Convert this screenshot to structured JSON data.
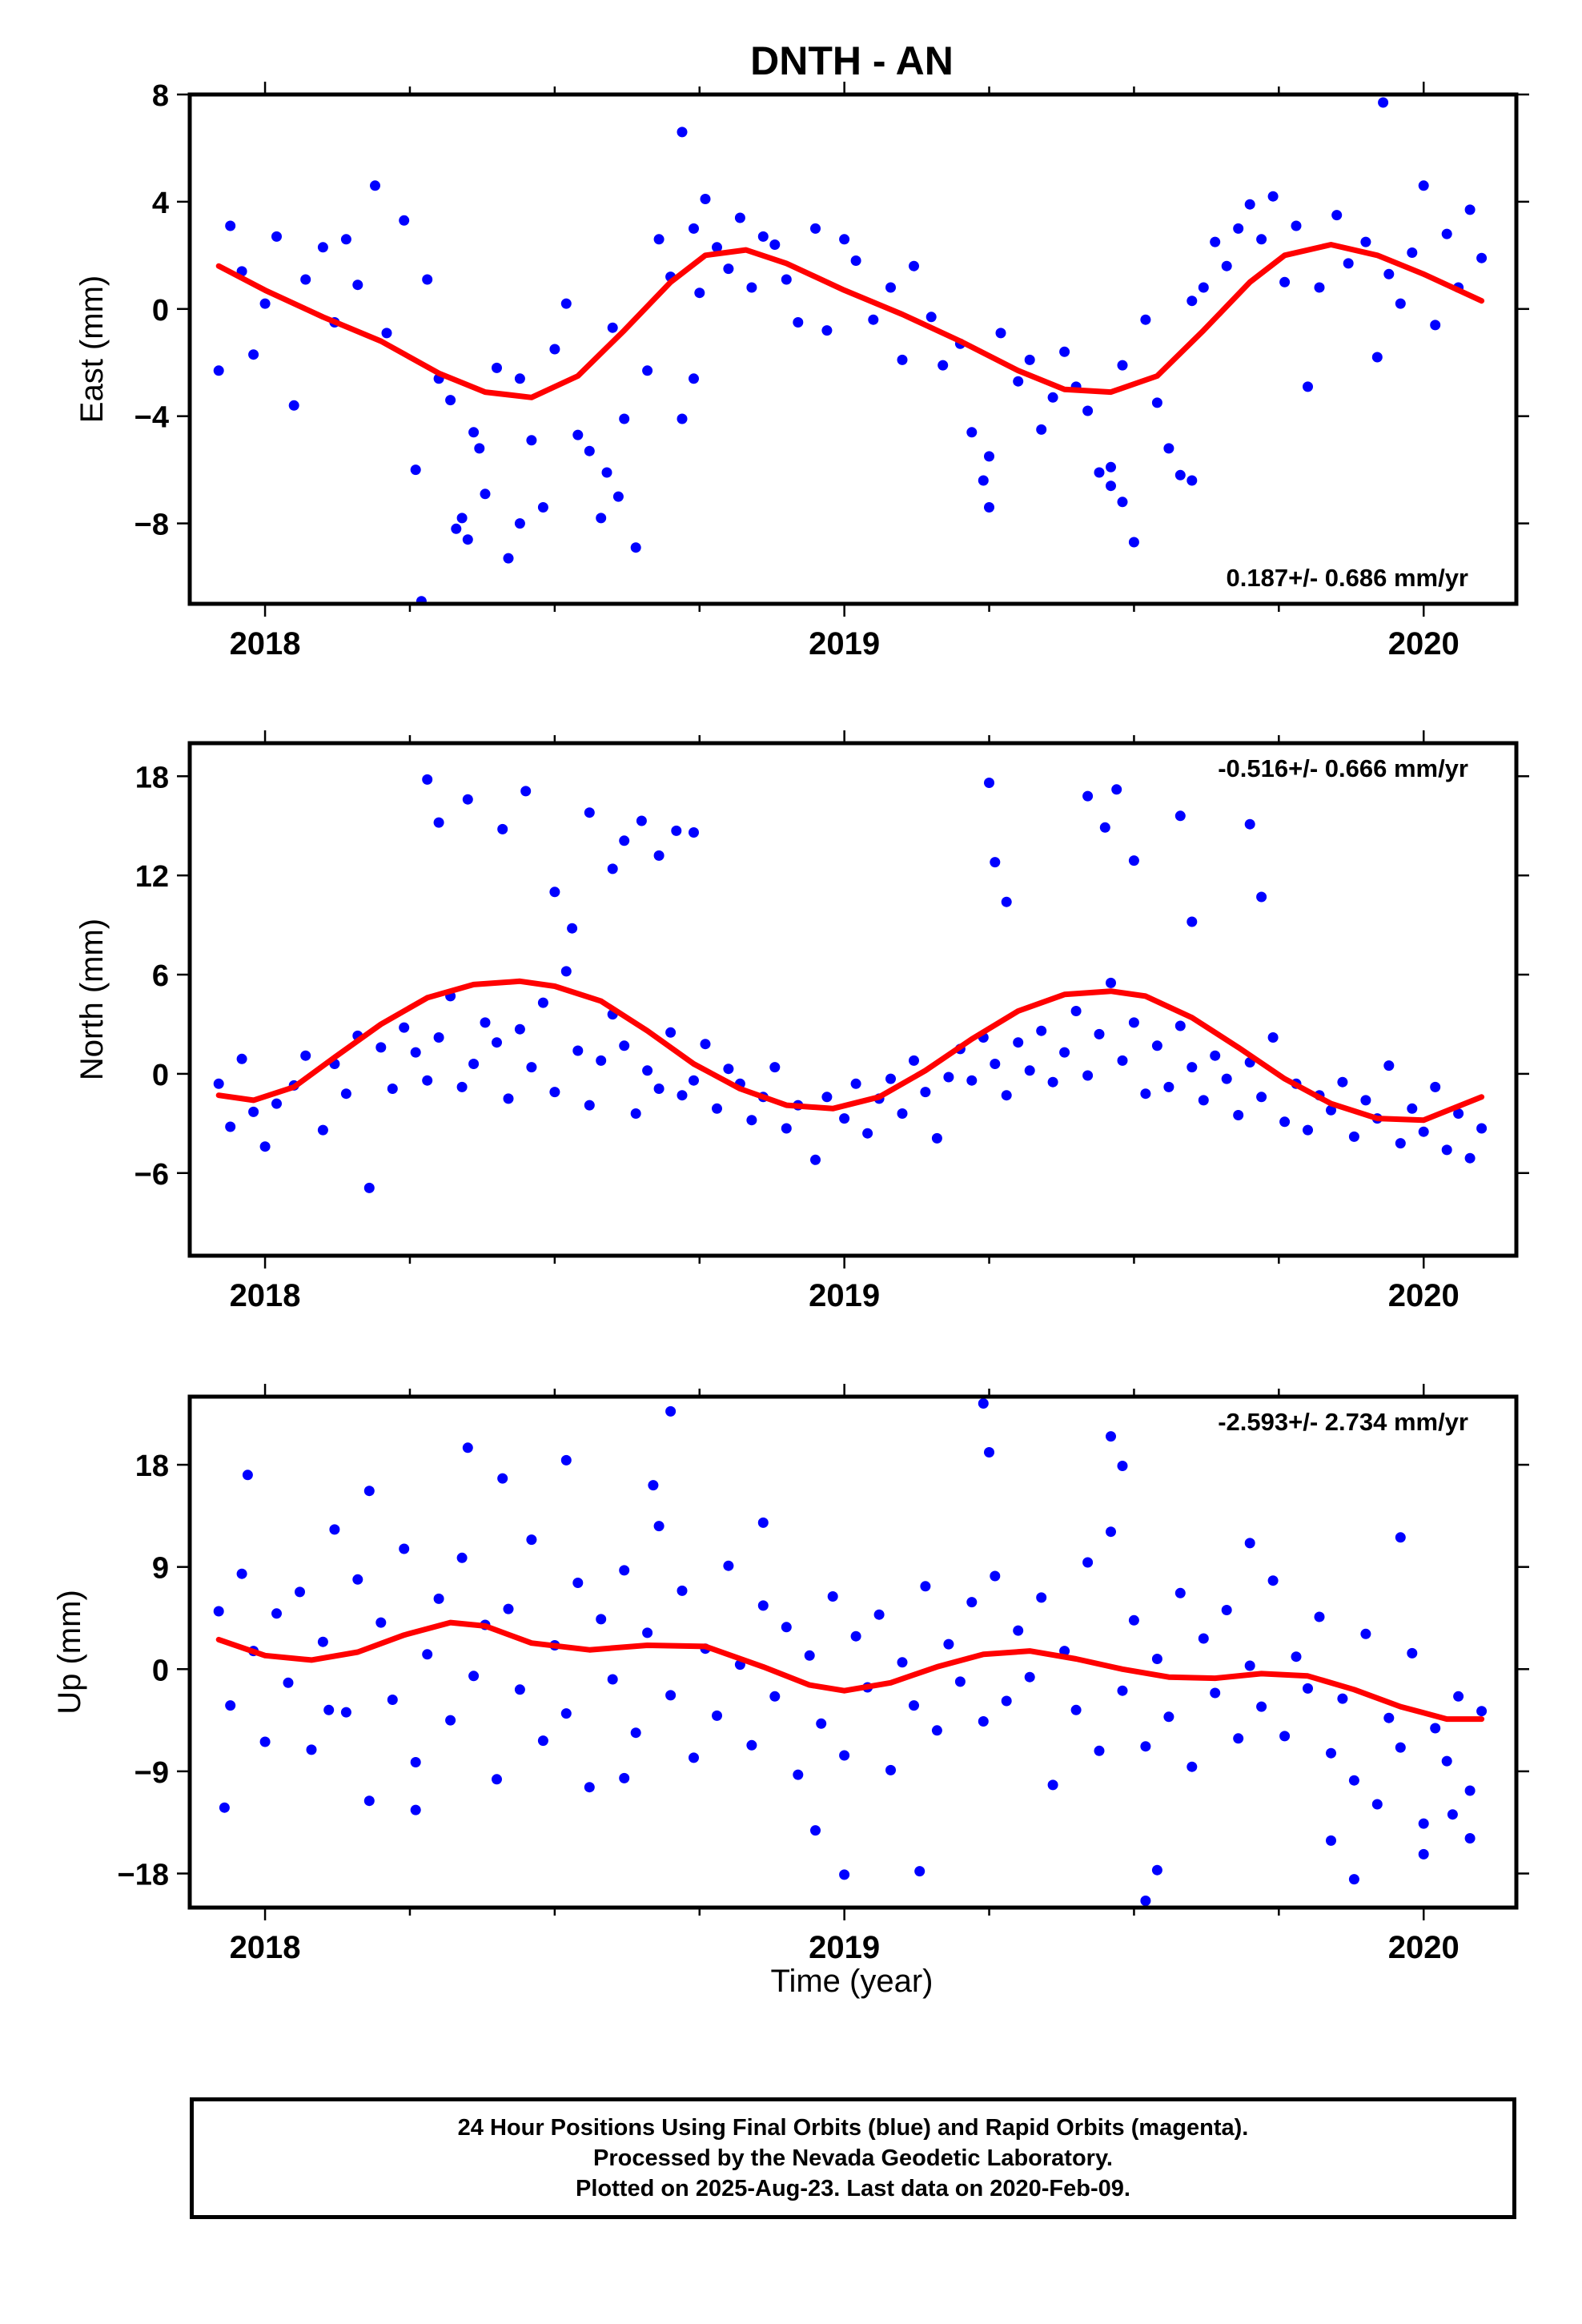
{
  "figure": {
    "title": "DNTH - AN",
    "xlabel": "Time (year)"
  },
  "colors": {
    "data": "#0000ff",
    "fit": "#ff0000",
    "axis": "#000000"
  },
  "caption": {
    "lines": [
      "24 Hour Positions Using Final Orbits (blue) and Rapid Orbits (magenta).",
      "Processed by the Nevada Geodetic Laboratory.",
      "Plotted on 2025-Aug-23. Last data on 2020-Feb-09."
    ]
  },
  "chart_data": [
    {
      "type": "scatter",
      "ylabel": "East (mm)",
      "rate_label": "0.187+/- 0.686 mm/yr",
      "rate_position": "bottom-right",
      "xlim": [
        2017.87,
        2020.16
      ],
      "ylim": [
        -11,
        8
      ],
      "yticks": [
        8,
        4,
        0,
        -4,
        -8
      ],
      "xticks": [
        2018,
        2019,
        2020
      ],
      "fit": {
        "x": [
          2017.92,
          2018.0,
          2018.1,
          2018.2,
          2018.3,
          2018.38,
          2018.46,
          2018.54,
          2018.62,
          2018.7,
          2018.76,
          2018.83,
          2018.9,
          2019.0,
          2019.1,
          2019.2,
          2019.3,
          2019.38,
          2019.46,
          2019.54,
          2019.62,
          2019.7,
          2019.76,
          2019.84,
          2019.92,
          2020.0,
          2020.1
        ],
        "y": [
          1.6,
          0.7,
          -0.3,
          -1.2,
          -2.4,
          -3.1,
          -3.3,
          -2.5,
          -0.8,
          1.0,
          2.0,
          2.2,
          1.7,
          0.7,
          -0.2,
          -1.2,
          -2.3,
          -3.0,
          -3.1,
          -2.5,
          -0.8,
          1.0,
          2.0,
          2.4,
          2.0,
          1.3,
          0.3
        ]
      },
      "points": {
        "x": [
          2017.92,
          2017.94,
          2017.96,
          2017.98,
          2018.0,
          2018.02,
          2018.05,
          2018.07,
          2018.1,
          2018.12,
          2018.14,
          2018.16,
          2018.19,
          2018.21,
          2018.24,
          2018.26,
          2018.28,
          2018.3,
          2018.32,
          2018.34,
          2018.35,
          2018.37,
          2018.38,
          2018.4,
          2018.42,
          2018.44,
          2018.46,
          2018.48,
          2018.5,
          2018.52,
          2018.54,
          2018.56,
          2018.58,
          2018.6,
          2018.62,
          2018.64,
          2018.66,
          2018.68,
          2018.7,
          2018.72,
          2018.74,
          2018.75,
          2018.76,
          2018.78,
          2018.8,
          2018.82,
          2018.84,
          2018.86,
          2018.88,
          2018.9,
          2018.92,
          2018.95,
          2018.97,
          2019.0,
          2019.02,
          2019.05,
          2019.08,
          2019.1,
          2019.12,
          2019.15,
          2019.17,
          2019.2,
          2019.22,
          2019.24,
          2019.25,
          2019.27,
          2019.3,
          2019.32,
          2019.34,
          2019.36,
          2019.38,
          2019.4,
          2019.42,
          2019.44,
          2019.46,
          2019.48,
          2019.5,
          2019.52,
          2019.54,
          2019.56,
          2019.58,
          2019.6,
          2019.62,
          2019.64,
          2019.66,
          2019.68,
          2019.7,
          2019.72,
          2019.74,
          2019.76,
          2019.78,
          2019.8,
          2019.82,
          2019.85,
          2019.87,
          2019.9,
          2019.92,
          2019.94,
          2019.96,
          2019.98,
          2020.0,
          2020.02,
          2020.04,
          2020.06,
          2020.08,
          2020.1,
          2018.27,
          2018.33,
          2018.36,
          2018.44,
          2018.59,
          2018.61,
          2018.72,
          2018.74,
          2019.25,
          2019.46,
          2019.48,
          2019.6,
          2019.93
        ],
        "y": [
          -2.3,
          3.1,
          1.4,
          -1.7,
          0.2,
          2.7,
          -3.6,
          1.1,
          2.3,
          -0.5,
          2.6,
          0.9,
          4.6,
          -0.9,
          3.3,
          -6.0,
          1.1,
          -2.6,
          -3.4,
          -7.8,
          -8.6,
          -5.2,
          -6.9,
          -2.2,
          -9.3,
          -2.6,
          -4.9,
          -7.4,
          -1.5,
          0.2,
          -4.7,
          -5.3,
          -7.8,
          -0.7,
          -4.1,
          -8.9,
          -2.3,
          2.6,
          1.2,
          6.6,
          3.0,
          0.6,
          4.1,
          2.3,
          1.5,
          3.4,
          0.8,
          2.7,
          2.4,
          1.1,
          -0.5,
          3.0,
          -0.8,
          2.6,
          1.8,
          -0.4,
          0.8,
          -1.9,
          1.6,
          -0.3,
          -2.1,
          -1.3,
          -4.6,
          -6.4,
          -5.5,
          -0.9,
          -2.7,
          -1.9,
          -4.5,
          -3.3,
          -1.6,
          -2.9,
          -3.8,
          -6.1,
          -6.6,
          -2.1,
          -8.7,
          -0.4,
          -3.5,
          -5.2,
          -6.2,
          0.3,
          0.8,
          2.5,
          1.6,
          3.0,
          3.9,
          2.6,
          4.2,
          1.0,
          3.1,
          -2.9,
          0.8,
          3.5,
          1.7,
          2.5,
          -1.8,
          1.3,
          0.2,
          2.1,
          4.6,
          -0.6,
          2.8,
          0.8,
          3.7,
          1.9,
          -10.9,
          -8.2,
          -4.6,
          -8.0,
          -6.1,
          -7.0,
          -4.1,
          -2.6,
          -7.4,
          -5.9,
          -7.2,
          -6.4,
          7.7
        ]
      }
    },
    {
      "type": "scatter",
      "ylabel": "North (mm)",
      "rate_label": "-0.516+/- 0.666 mm/yr",
      "rate_position": "top-right",
      "xlim": [
        2017.87,
        2020.16
      ],
      "ylim": [
        -11,
        20
      ],
      "yticks": [
        18,
        12,
        6,
        0,
        -6
      ],
      "xticks": [
        2018,
        2019,
        2020
      ],
      "fit": {
        "x": [
          2017.92,
          2017.98,
          2018.05,
          2018.12,
          2018.2,
          2018.28,
          2018.36,
          2018.44,
          2018.5,
          2018.58,
          2018.66,
          2018.74,
          2018.82,
          2018.9,
          2018.98,
          2019.06,
          2019.14,
          2019.22,
          2019.3,
          2019.38,
          2019.46,
          2019.52,
          2019.6,
          2019.68,
          2019.76,
          2019.84,
          2019.92,
          2020.0,
          2020.1
        ],
        "y": [
          -1.3,
          -1.6,
          -0.8,
          1.0,
          3.0,
          4.6,
          5.4,
          5.6,
          5.3,
          4.4,
          2.6,
          0.6,
          -0.9,
          -1.9,
          -2.1,
          -1.4,
          0.2,
          2.1,
          3.8,
          4.8,
          5.0,
          4.7,
          3.4,
          1.6,
          -0.3,
          -1.8,
          -2.7,
          -2.8,
          -1.4
        ]
      },
      "points": {
        "x": [
          2017.92,
          2017.94,
          2017.96,
          2017.98,
          2018.0,
          2018.02,
          2018.05,
          2018.07,
          2018.1,
          2018.12,
          2018.14,
          2018.16,
          2018.18,
          2018.2,
          2018.22,
          2018.24,
          2018.26,
          2018.28,
          2018.3,
          2018.32,
          2018.34,
          2018.36,
          2018.38,
          2018.4,
          2018.42,
          2018.44,
          2018.46,
          2018.48,
          2018.5,
          2018.52,
          2018.54,
          2018.56,
          2018.58,
          2018.6,
          2018.62,
          2018.64,
          2018.66,
          2018.68,
          2018.7,
          2018.72,
          2018.74,
          2018.76,
          2018.78,
          2018.8,
          2018.82,
          2018.84,
          2018.86,
          2018.88,
          2018.9,
          2018.92,
          2018.95,
          2018.97,
          2019.0,
          2019.02,
          2019.04,
          2019.06,
          2019.08,
          2019.1,
          2019.12,
          2019.14,
          2019.16,
          2019.18,
          2019.2,
          2019.22,
          2019.24,
          2019.26,
          2019.28,
          2019.3,
          2019.32,
          2019.34,
          2019.36,
          2019.38,
          2019.4,
          2019.42,
          2019.44,
          2019.46,
          2019.48,
          2019.5,
          2019.52,
          2019.54,
          2019.56,
          2019.58,
          2019.6,
          2019.62,
          2019.64,
          2019.66,
          2019.68,
          2019.7,
          2019.72,
          2019.74,
          2019.76,
          2019.78,
          2019.8,
          2019.82,
          2019.84,
          2019.86,
          2019.88,
          2019.9,
          2019.92,
          2019.94,
          2019.96,
          2019.98,
          2020.0,
          2020.02,
          2020.04,
          2020.06,
          2020.08,
          2020.1,
          2018.28,
          2018.3,
          2018.35,
          2018.41,
          2018.45,
          2018.5,
          2018.53,
          2018.56,
          2018.6,
          2018.62,
          2018.65,
          2018.68,
          2018.71,
          2018.74,
          2019.25,
          2019.26,
          2019.28,
          2019.42,
          2019.45,
          2019.47,
          2019.5,
          2019.58,
          2019.6,
          2019.7,
          2019.72
        ],
        "y": [
          -0.6,
          -3.2,
          0.9,
          -2.3,
          -4.4,
          -1.8,
          -0.7,
          1.1,
          -3.4,
          0.6,
          -1.2,
          2.3,
          -6.9,
          1.6,
          -0.9,
          2.8,
          1.3,
          -0.4,
          2.2,
          4.7,
          -0.8,
          0.6,
          3.1,
          1.9,
          -1.5,
          2.7,
          0.4,
          4.3,
          -1.1,
          6.2,
          1.4,
          -1.9,
          0.8,
          3.6,
          1.7,
          -2.4,
          0.2,
          -0.9,
          2.5,
          -1.3,
          -0.4,
          1.8,
          -2.1,
          0.3,
          -0.6,
          -2.8,
          -1.4,
          0.4,
          -3.3,
          -1.9,
          -5.2,
          -1.4,
          -2.7,
          -0.6,
          -3.6,
          -1.5,
          -0.3,
          -2.4,
          0.8,
          -1.1,
          -3.9,
          -0.2,
          1.5,
          -0.4,
          2.2,
          0.6,
          -1.3,
          1.9,
          0.2,
          2.6,
          -0.5,
          1.3,
          3.8,
          -0.1,
          2.4,
          5.5,
          0.8,
          3.1,
          -1.2,
          1.7,
          -0.8,
          2.9,
          0.4,
          -1.6,
          1.1,
          -0.3,
          -2.5,
          0.7,
          -1.4,
          2.2,
          -2.9,
          -0.6,
          -3.4,
          -1.3,
          -2.2,
          -0.5,
          -3.8,
          -1.6,
          -2.7,
          0.5,
          -4.2,
          -2.1,
          -3.5,
          -0.8,
          -4.6,
          -2.4,
          -5.1,
          -3.3,
          17.8,
          15.2,
          16.6,
          14.8,
          17.1,
          11.0,
          8.8,
          15.8,
          12.4,
          14.1,
          15.3,
          13.2,
          14.7,
          14.6,
          17.6,
          12.8,
          10.4,
          16.8,
          14.9,
          17.2,
          12.9,
          15.6,
          9.2,
          15.1,
          10.7
        ]
      }
    },
    {
      "type": "scatter",
      "ylabel": "Up (mm)",
      "rate_label": "-2.593+/- 2.734 mm/yr",
      "rate_position": "top-right",
      "xlim": [
        2017.87,
        2020.16
      ],
      "ylim": [
        -21,
        24
      ],
      "yticks": [
        18,
        9,
        0,
        -9,
        -18
      ],
      "xticks": [
        2018,
        2019,
        2020
      ],
      "fit": {
        "x": [
          2017.92,
          2018.0,
          2018.08,
          2018.16,
          2018.24,
          2018.32,
          2018.38,
          2018.46,
          2018.56,
          2018.66,
          2018.76,
          2018.86,
          2018.94,
          2019.0,
          2019.08,
          2019.16,
          2019.24,
          2019.32,
          2019.4,
          2019.48,
          2019.56,
          2019.64,
          2019.72,
          2019.8,
          2019.88,
          2019.96,
          2020.04,
          2020.1
        ],
        "y": [
          2.6,
          1.2,
          0.8,
          1.5,
          3.0,
          4.1,
          3.8,
          2.3,
          1.7,
          2.1,
          2.0,
          0.2,
          -1.4,
          -1.9,
          -1.2,
          0.2,
          1.3,
          1.6,
          0.9,
          0.0,
          -0.7,
          -0.8,
          -0.4,
          -0.6,
          -1.8,
          -3.3,
          -4.4,
          -4.4
        ]
      },
      "points": {
        "x": [
          2017.92,
          2017.94,
          2017.96,
          2017.98,
          2018.0,
          2018.02,
          2018.04,
          2018.06,
          2018.08,
          2018.1,
          2018.12,
          2018.14,
          2018.16,
          2018.18,
          2018.2,
          2018.22,
          2018.24,
          2018.26,
          2018.28,
          2018.3,
          2018.32,
          2018.34,
          2018.36,
          2018.38,
          2018.4,
          2018.42,
          2018.44,
          2018.46,
          2018.48,
          2018.5,
          2018.52,
          2018.54,
          2018.56,
          2018.58,
          2018.6,
          2018.62,
          2018.64,
          2018.66,
          2018.68,
          2018.7,
          2018.72,
          2018.74,
          2018.76,
          2018.78,
          2018.8,
          2018.82,
          2018.84,
          2018.86,
          2018.88,
          2018.9,
          2018.92,
          2018.94,
          2018.96,
          2018.98,
          2019.0,
          2019.02,
          2019.04,
          2019.06,
          2019.08,
          2019.1,
          2019.12,
          2019.14,
          2019.16,
          2019.18,
          2019.2,
          2019.22,
          2019.24,
          2019.26,
          2019.28,
          2019.3,
          2019.32,
          2019.34,
          2019.36,
          2019.38,
          2019.4,
          2019.42,
          2019.44,
          2019.46,
          2019.48,
          2019.5,
          2019.52,
          2019.54,
          2019.56,
          2019.58,
          2019.6,
          2019.62,
          2019.64,
          2019.66,
          2019.68,
          2019.7,
          2019.72,
          2019.74,
          2019.76,
          2019.78,
          2019.8,
          2019.82,
          2019.84,
          2019.86,
          2019.88,
          2019.9,
          2019.92,
          2019.94,
          2019.96,
          2019.98,
          2020.0,
          2020.02,
          2020.04,
          2020.06,
          2020.08,
          2020.1,
          2017.93,
          2017.97,
          2018.11,
          2018.18,
          2018.26,
          2018.35,
          2018.41,
          2018.52,
          2018.62,
          2018.67,
          2018.7,
          2018.86,
          2018.95,
          2019.0,
          2019.13,
          2019.24,
          2019.25,
          2019.46,
          2019.48,
          2019.52,
          2019.54,
          2019.7,
          2019.84,
          2019.88,
          2019.96,
          2020.0,
          2020.05,
          2020.08
        ],
        "y": [
          5.1,
          -3.2,
          8.4,
          1.6,
          -6.4,
          4.9,
          -1.2,
          6.8,
          -7.1,
          2.4,
          12.3,
          -3.8,
          7.9,
          -11.6,
          4.1,
          -2.7,
          10.6,
          -8.2,
          1.3,
          6.2,
          -4.5,
          9.8,
          -0.6,
          3.9,
          -9.7,
          5.3,
          -1.8,
          11.4,
          -6.3,
          2.1,
          -3.9,
          7.6,
          -10.4,
          4.4,
          -0.9,
          8.7,
          -5.6,
          3.2,
          12.6,
          -2.3,
          6.9,
          -7.8,
          1.8,
          -4.1,
          9.1,
          0.4,
          -6.7,
          5.6,
          -2.4,
          3.7,
          -9.3,
          1.2,
          -4.8,
          6.4,
          -7.6,
          2.9,
          -1.6,
          4.8,
          -8.9,
          0.6,
          -3.2,
          7.3,
          -5.4,
          2.2,
          -1.1,
          5.9,
          -4.6,
          8.2,
          -2.8,
          3.4,
          -0.7,
          6.3,
          -10.2,
          1.6,
          -3.6,
          9.4,
          -7.2,
          12.1,
          -1.9,
          4.3,
          -6.8,
          0.9,
          -4.2,
          6.7,
          -8.6,
          2.7,
          -2.1,
          5.2,
          -6.1,
          0.3,
          -3.3,
          7.8,
          -5.9,
          1.1,
          -1.7,
          4.6,
          -7.4,
          -2.6,
          -9.8,
          3.1,
          -11.9,
          -4.3,
          -6.9,
          1.4,
          -13.6,
          -5.2,
          -8.1,
          -2.4,
          -10.7,
          -3.7,
          -12.2,
          17.1,
          -3.6,
          15.7,
          -12.4,
          19.5,
          16.8,
          18.4,
          -9.6,
          16.2,
          22.7,
          12.9,
          -14.2,
          -18.1,
          -17.8,
          23.4,
          19.1,
          20.5,
          17.9,
          -20.4,
          -17.7,
          11.1,
          -15.1,
          -18.5,
          11.6,
          -16.3,
          -12.8,
          -14.9
        ]
      }
    }
  ]
}
